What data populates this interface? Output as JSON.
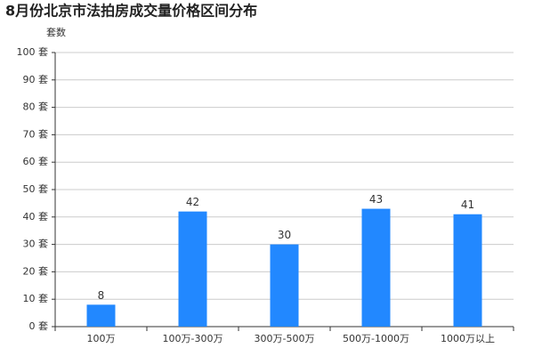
{
  "chart_data": {
    "type": "bar",
    "title": "8月份北京市法拍房成交量价格区间分布",
    "y_label": "套数",
    "categories": [
      "100万",
      "100万-300万",
      "300万-500万",
      "500万-1000万",
      "1000万以上"
    ],
    "values": [
      8,
      42,
      30,
      43,
      41
    ],
    "color": "#2288ff",
    "ylim": [
      0,
      100
    ],
    "yticks": [
      {
        "value": 0,
        "label": "0 套"
      },
      {
        "value": 10,
        "label": "10 套"
      },
      {
        "value": 20,
        "label": "20 套"
      },
      {
        "value": 30,
        "label": "30 套"
      },
      {
        "value": 40,
        "label": "40 套"
      },
      {
        "value": 50,
        "label": "50 套"
      },
      {
        "value": 60,
        "label": "60 套"
      },
      {
        "value": 70,
        "label": "70 套"
      },
      {
        "value": 80,
        "label": "80 套"
      },
      {
        "value": 90,
        "label": "90 套"
      },
      {
        "value": 100,
        "label": "100 套"
      }
    ],
    "grid": true
  }
}
